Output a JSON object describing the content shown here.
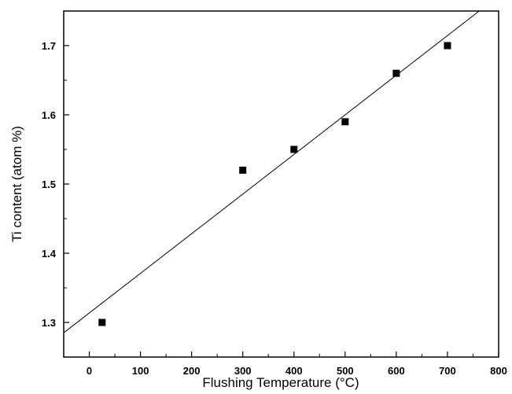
{
  "chart_data": {
    "type": "scatter",
    "xlabel": "Flushing Temperature (°C)",
    "ylabel": "Ti content (atom %)",
    "xlim": [
      -50,
      800
    ],
    "ylim": [
      1.25,
      1.75
    ],
    "xticks": [
      0,
      100,
      200,
      300,
      400,
      500,
      600,
      700,
      800
    ],
    "yticks": [
      1.3,
      1.4,
      1.5,
      1.6,
      1.7
    ],
    "xtick_labels": [
      "0",
      "100",
      "200",
      "300",
      "400",
      "500",
      "600",
      "700",
      "800"
    ],
    "ytick_labels": [
      "1.3",
      "1.4",
      "1.5",
      "1.6",
      "1.7"
    ],
    "series": [
      {
        "x": [
          25,
          300,
          400,
          500,
          600,
          700
        ],
        "y": [
          1.3,
          1.52,
          1.55,
          1.59,
          1.66,
          1.7
        ],
        "marker": "square",
        "color": "#000000"
      }
    ],
    "fit_line": {
      "x": [
        -50,
        762
      ],
      "y": [
        1.285,
        1.75
      ],
      "color": "#000000"
    },
    "grid": false,
    "legend": "none"
  }
}
